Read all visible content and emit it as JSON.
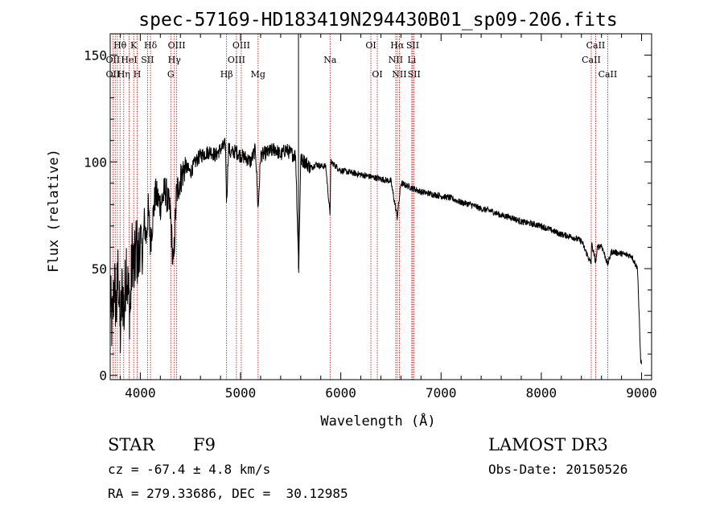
{
  "chart_data": {
    "type": "line",
    "title": "spec-57169-HD183419N294430B01_sp09-206.fits",
    "xlabel": "Wavelength (Å)",
    "ylabel": "Flux (relative)",
    "xlim": [
      3700,
      9100
    ],
    "ylim": [
      -2,
      160
    ],
    "xticks": [
      4000,
      5000,
      6000,
      7000,
      8000,
      9000
    ],
    "yticks": [
      0,
      50,
      100,
      150
    ],
    "series": [
      {
        "name": "flux",
        "x": [
          3700,
          3720,
          3740,
          3760,
          3780,
          3800,
          3820,
          3840,
          3860,
          3880,
          3900,
          3920,
          3940,
          3960,
          3980,
          4000,
          4020,
          4040,
          4060,
          4080,
          4100,
          4150,
          4200,
          4250,
          4300,
          4330,
          4340,
          4360,
          4400,
          4450,
          4500,
          4550,
          4600,
          4650,
          4700,
          4750,
          4800,
          4850,
          4861,
          4880,
          4900,
          4950,
          5000,
          5050,
          5100,
          5150,
          5175,
          5200,
          5250,
          5300,
          5350,
          5400,
          5450,
          5500,
          5550,
          5580,
          5600,
          5650,
          5700,
          5750,
          5800,
          5850,
          5893,
          5900,
          5950,
          6000,
          6100,
          6200,
          6300,
          6400,
          6500,
          6563,
          6600,
          6700,
          6800,
          6900,
          7000,
          7100,
          7200,
          7300,
          7400,
          7500,
          7600,
          7700,
          7800,
          7900,
          8000,
          8100,
          8200,
          8300,
          8400,
          8498,
          8500,
          8542,
          8560,
          8600,
          8662,
          8700,
          8800,
          8900,
          8960,
          8990,
          9000
        ],
        "values": [
          35,
          22,
          45,
          30,
          50,
          18,
          42,
          28,
          55,
          38,
          30,
          60,
          48,
          62,
          52,
          68,
          55,
          72,
          64,
          78,
          62,
          85,
          80,
          87,
          76,
          50,
          62,
          85,
          92,
          98,
          95,
          100,
          103,
          104,
          105,
          103,
          106,
          108,
          80,
          107,
          104,
          105,
          103,
          102,
          100,
          106,
          77,
          103,
          104,
          105,
          106,
          103,
          106,
          104,
          103,
          50,
          101,
          100,
          97,
          99,
          98,
          98,
          75,
          100,
          98,
          96,
          95,
          94,
          93,
          92,
          91,
          74,
          90,
          88,
          86,
          85,
          84,
          83,
          81,
          80,
          78,
          77,
          75,
          74,
          72,
          71,
          70,
          68,
          66,
          65,
          63,
          52,
          62,
          53,
          60,
          61,
          52,
          58,
          57,
          56,
          50,
          8,
          5
        ]
      }
    ],
    "line_labels": [
      {
        "label": "Hθ",
        "x": 3798,
        "row": 0
      },
      {
        "label": "OII",
        "x": 3727,
        "row": 1
      },
      {
        "label": "OII",
        "x": 3727,
        "row": 2
      },
      {
        "label": "Hη",
        "x": 3835,
        "row": 2
      },
      {
        "label": "HeI",
        "x": 3889,
        "row": 1
      },
      {
        "label": "K",
        "x": 3934,
        "row": 0
      },
      {
        "label": "H",
        "x": 3969,
        "row": 2
      },
      {
        "label": "Hδ",
        "x": 4102,
        "row": 0
      },
      {
        "label": "SII",
        "x": 4072,
        "row": 1
      },
      {
        "label": "OIII",
        "x": 4363,
        "row": 0
      },
      {
        "label": "Hγ",
        "x": 4340,
        "row": 1
      },
      {
        "label": "G",
        "x": 4304,
        "row": 2
      },
      {
        "label": "Hβ",
        "x": 4861,
        "row": 2
      },
      {
        "label": "OIII",
        "x": 5007,
        "row": 0
      },
      {
        "label": "OIII",
        "x": 4959,
        "row": 1
      },
      {
        "label": "Mg",
        "x": 5175,
        "row": 2
      },
      {
        "label": "Na",
        "x": 5893,
        "row": 1
      },
      {
        "label": "OI",
        "x": 6300,
        "row": 0
      },
      {
        "label": "OI",
        "x": 6364,
        "row": 2
      },
      {
        "label": "Hα",
        "x": 6563,
        "row": 0
      },
      {
        "label": "NII",
        "x": 6548,
        "row": 1
      },
      {
        "label": "NII",
        "x": 6584,
        "row": 2
      },
      {
        "label": "SII",
        "x": 6717,
        "row": 0
      },
      {
        "label": "Li",
        "x": 6708,
        "row": 1
      },
      {
        "label": "SII",
        "x": 6731,
        "row": 2
      },
      {
        "label": "CaII",
        "x": 8542,
        "row": 0
      },
      {
        "label": "CaII",
        "x": 8498,
        "row": 1
      },
      {
        "label": "CaII",
        "x": 8662,
        "row": 2
      }
    ],
    "line_markers": [
      3727,
      3750,
      3771,
      3798,
      3835,
      3889,
      3934,
      3969,
      4072,
      4102,
      4304,
      4340,
      4363,
      4861,
      4959,
      5007,
      5175,
      5893,
      6300,
      6364,
      6548,
      6563,
      6584,
      6708,
      6717,
      6731,
      8498,
      8542,
      8662
    ],
    "colors": {
      "data": "#000000",
      "markers": "#cc0000",
      "frame": "#000000"
    }
  },
  "info": {
    "object_class": "STAR",
    "subclass": "F9",
    "survey": "LAMOST DR3",
    "cz": "cz = -67.4 ± 4.8 km/s",
    "obs_date": "Obs-Date: 20150526",
    "coords": "RA = 279.33686, DEC =  30.12985"
  }
}
